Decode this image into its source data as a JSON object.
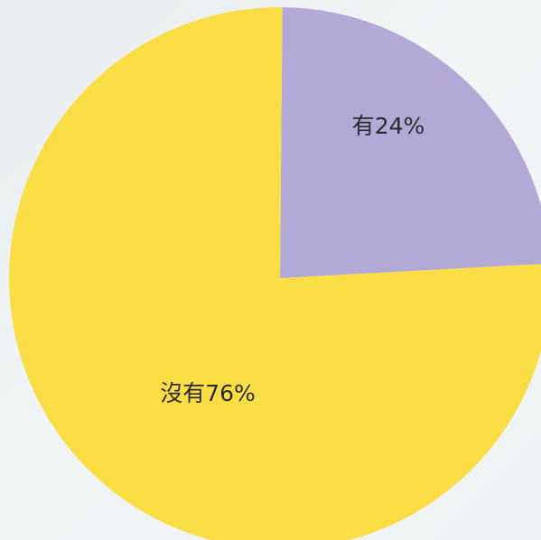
{
  "chart_data": {
    "type": "pie",
    "slices": [
      {
        "label": "有24%",
        "value": 24,
        "color": "#b3a9d6"
      },
      {
        "label": "沒有76%",
        "value": 76,
        "color": "#fbdd45"
      }
    ]
  }
}
